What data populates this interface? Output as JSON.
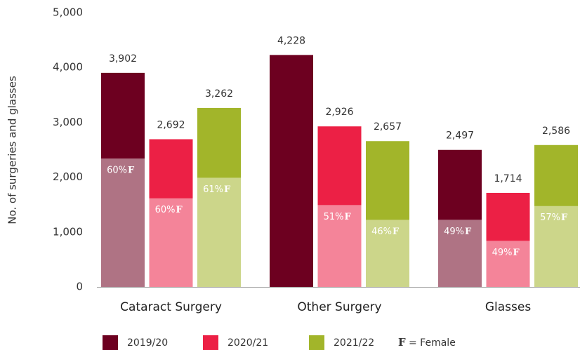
{
  "chart_data": {
    "type": "bar",
    "y_axis_label": "No. of surgeries and glasses",
    "categories": [
      "Cataract Surgery",
      "Other Surgery",
      "Glasses"
    ],
    "series": [
      {
        "name": "2019/20",
        "color": "#6d0020",
        "values": [
          3902,
          4228,
          2497
        ],
        "value_labels": [
          "3,902",
          "4,228",
          "2,497"
        ],
        "female_pct": [
          60,
          null,
          49
        ],
        "female_labels": [
          "60%",
          null,
          "49%"
        ]
      },
      {
        "name": "2020/21",
        "color": "#ec2045",
        "values": [
          2692,
          2926,
          1714
        ],
        "value_labels": [
          "2,692",
          "2,926",
          "1,714"
        ],
        "female_pct": [
          60,
          51,
          49
        ],
        "female_labels": [
          "60%",
          "51%",
          "49%"
        ]
      },
      {
        "name": "2021/22",
        "color": "#a2b52a",
        "values": [
          3262,
          2657,
          2586
        ],
        "value_labels": [
          "3,262",
          "2,657",
          "2,586"
        ],
        "female_pct": [
          61,
          46,
          57
        ],
        "female_labels": [
          "61%",
          "46%",
          "57%"
        ]
      }
    ],
    "female_marker": "F",
    "female_note": "= Female",
    "ylim": [
      0,
      5000
    ],
    "yticks": [
      0,
      {
        "value": 1000,
        "label": "1,000"
      },
      {
        "value": 2000,
        "label": "2,000"
      },
      {
        "value": 3000,
        "label": "3,000"
      },
      {
        "value": 4000,
        "label": "4,000"
      },
      {
        "value": 5000,
        "label": "5,000"
      }
    ],
    "grid": false
  }
}
